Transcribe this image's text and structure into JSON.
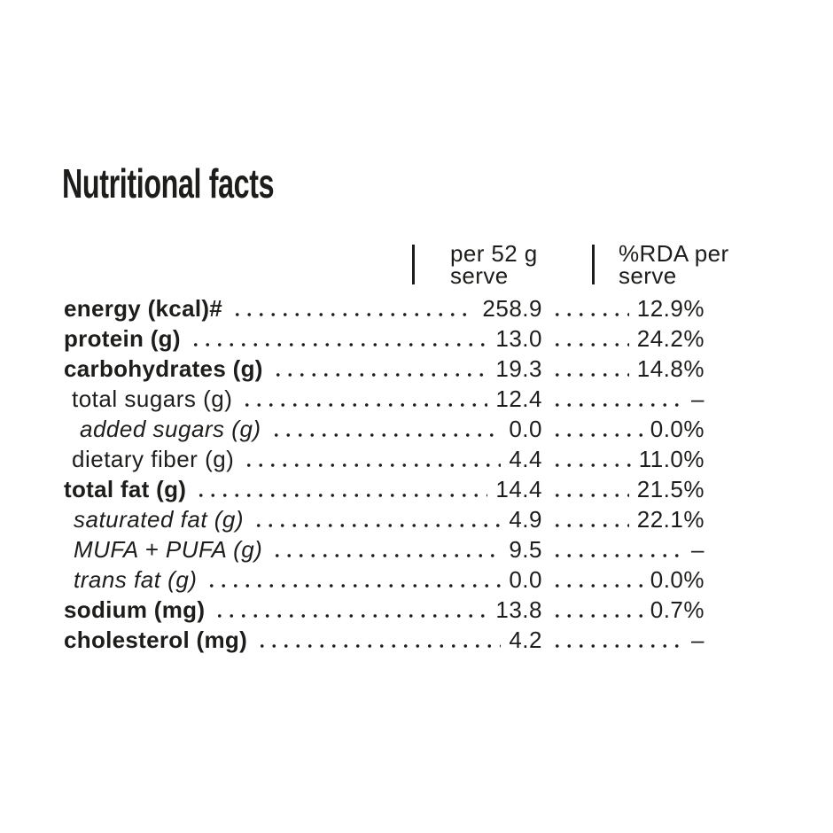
{
  "page": {
    "background_color": "#ffffff",
    "text_color": "#1d1d1b"
  },
  "title": "Nutritional facts",
  "table": {
    "columns": [
      {
        "line1": "per 52 g",
        "line2": "serve"
      },
      {
        "line1": "%RDA per",
        "line2": "serve"
      }
    ],
    "rows": [
      {
        "label": "energy (kcal)#",
        "style": "bold",
        "per_serve": "258.9",
        "rda": "12.9%"
      },
      {
        "label": "protein (g)",
        "style": "bold",
        "per_serve": "13.0",
        "rda": "24.2%"
      },
      {
        "label": "carbohydrates (g)",
        "style": "bold",
        "per_serve": "19.3",
        "rda": "14.8%"
      },
      {
        "label": "total sugars (g)",
        "style": "sub",
        "per_serve": "12.4",
        "rda": "–"
      },
      {
        "label": "added sugars (g)",
        "style": "sub-italic-deep",
        "per_serve": "0.0",
        "rda": "0.0%"
      },
      {
        "label": "dietary fiber (g)",
        "style": "sub",
        "per_serve": "4.4",
        "rda": "11.0%"
      },
      {
        "label": "total fat (g)",
        "style": "bold",
        "per_serve": "14.4",
        "rda": "21.5%"
      },
      {
        "label": "saturated fat (g)",
        "style": "sub-italic",
        "per_serve": "4.9",
        "rda": "22.1%"
      },
      {
        "label": "MUFA + PUFA (g)",
        "style": "sub-italic",
        "per_serve": "9.5",
        "rda": "–"
      },
      {
        "label": "trans fat (g)",
        "style": "sub-italic",
        "per_serve": "0.0",
        "rda": "0.0%"
      },
      {
        "label": "sodium (mg)",
        "style": "bold",
        "per_serve": "13.8",
        "rda": "0.7%"
      },
      {
        "label": "cholesterol (mg)",
        "style": "bold",
        "per_serve": "4.2",
        "rda": "–"
      }
    ]
  }
}
